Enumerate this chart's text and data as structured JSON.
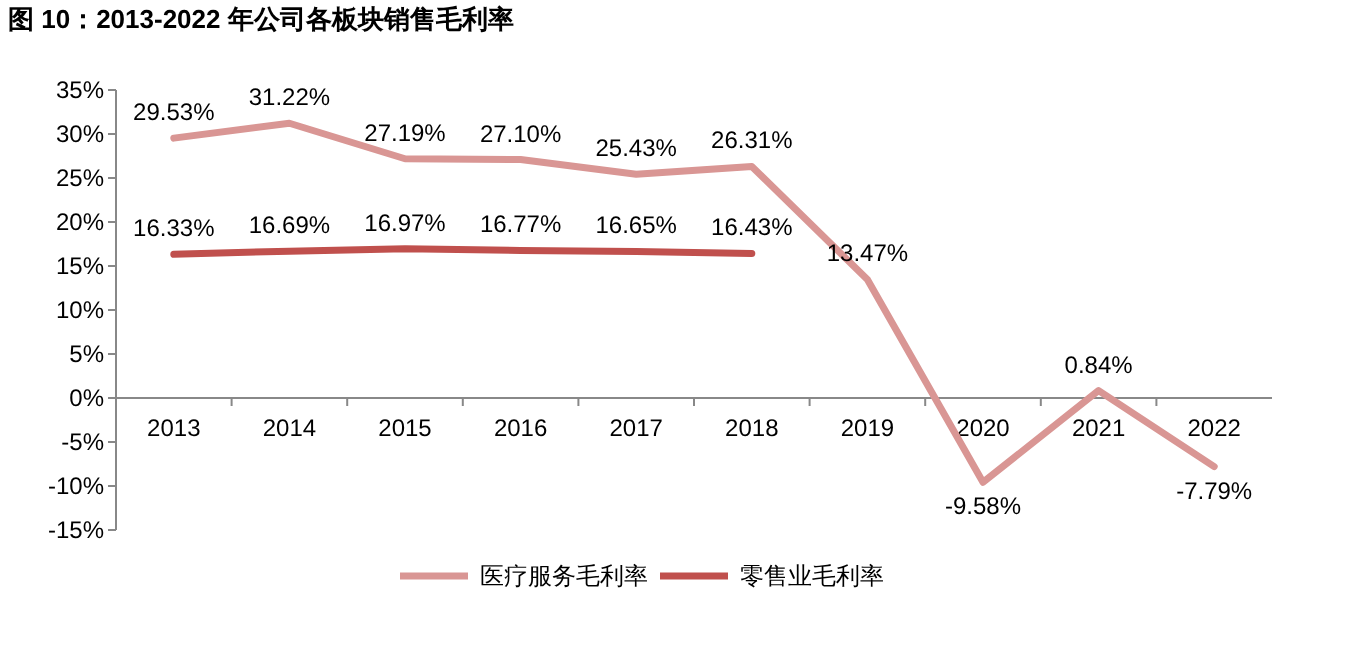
{
  "chart_data": {
    "type": "line",
    "title": "图 10：2013-2022 年公司各板块销售毛利率",
    "categories": [
      "2013",
      "2014",
      "2015",
      "2016",
      "2017",
      "2018",
      "2019",
      "2020",
      "2021",
      "2022"
    ],
    "series": [
      {
        "name": "医疗服务毛利率",
        "color": "#d99694",
        "values": [
          29.53,
          31.22,
          27.19,
          27.1,
          25.43,
          26.31,
          13.47,
          -9.58,
          0.84,
          -7.79
        ],
        "value_labels": [
          "29.53%",
          "31.22%",
          "27.19%",
          "27.10%",
          "25.43%",
          "26.31%",
          "13.47%",
          "-9.58%",
          "0.84%",
          "-7.79%"
        ]
      },
      {
        "name": "零售业毛利率",
        "color": "#c0504d",
        "values": [
          16.33,
          16.69,
          16.97,
          16.77,
          16.65,
          16.43,
          null,
          null,
          null,
          null
        ],
        "value_labels": [
          "16.33%",
          "16.69%",
          "16.97%",
          "16.77%",
          "16.65%",
          "16.43%",
          null,
          null,
          null,
          null
        ]
      }
    ],
    "ylim": [
      -15,
      35
    ],
    "yticks": [
      {
        "value": -15,
        "label": "-15%"
      },
      {
        "value": -10,
        "label": "-10%"
      },
      {
        "value": -5,
        "label": "-5%"
      },
      {
        "value": 0,
        "label": "0%"
      },
      {
        "value": 5,
        "label": "5%"
      },
      {
        "value": 10,
        "label": "10%"
      },
      {
        "value": 15,
        "label": "15%"
      },
      {
        "value": 20,
        "label": "20%"
      },
      {
        "value": 25,
        "label": "25%"
      },
      {
        "value": 30,
        "label": "30%"
      },
      {
        "value": 35,
        "label": "35%"
      }
    ],
    "legend": "bottom",
    "grid": false,
    "marker": "none",
    "line_style": "solid"
  }
}
